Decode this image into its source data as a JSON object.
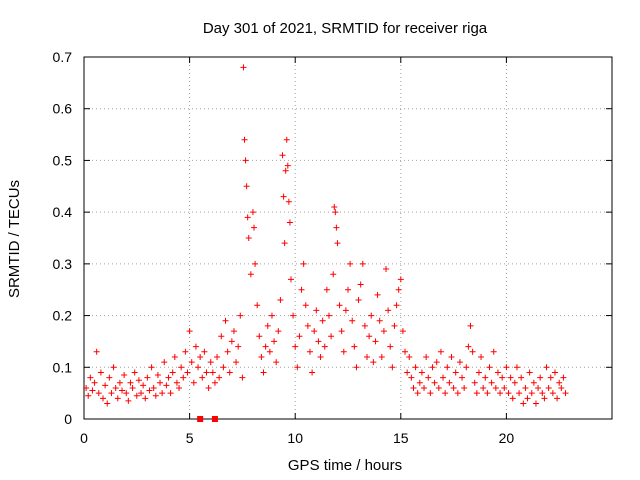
{
  "chart_data": {
    "type": "scatter",
    "title": "Day 301 of 2021, SRMTID for receiver riga",
    "xlabel": "GPS time / hours",
    "ylabel": "SRMTID / TECUs",
    "xlim": [
      0,
      25
    ],
    "ylim": [
      0,
      0.7
    ],
    "x_ticks": [
      0,
      5,
      10,
      15,
      20
    ],
    "x_tick_labels": [
      "0",
      "5",
      "10",
      "15",
      "20"
    ],
    "y_ticks": [
      0,
      0.1,
      0.2,
      0.3,
      0.4,
      0.5,
      0.6,
      0.7
    ],
    "y_tick_labels": [
      "0",
      "0.1",
      "0.2",
      "0.3",
      "0.4",
      "0.5",
      "0.6",
      "0.7"
    ],
    "grid": true,
    "legend": "none",
    "marker": "+",
    "point_color": "#ff0000",
    "series": [
      {
        "name": "SRMTID",
        "points": [
          [
            0.1,
            0.06
          ],
          [
            0.2,
            0.045
          ],
          [
            0.3,
            0.08
          ],
          [
            0.4,
            0.055
          ],
          [
            0.5,
            0.07
          ],
          [
            0.6,
            0.13
          ],
          [
            0.7,
            0.05
          ],
          [
            0.8,
            0.09
          ],
          [
            0.9,
            0.04
          ],
          [
            1.0,
            0.065
          ],
          [
            1.1,
            0.03
          ],
          [
            1.2,
            0.08
          ],
          [
            1.3,
            0.05
          ],
          [
            1.4,
            0.1
          ],
          [
            1.5,
            0.06
          ],
          [
            1.6,
            0.04
          ],
          [
            1.7,
            0.07
          ],
          [
            1.8,
            0.055
          ],
          [
            1.9,
            0.085
          ],
          [
            2.0,
            0.05
          ],
          [
            2.1,
            0.035
          ],
          [
            2.2,
            0.07
          ],
          [
            2.3,
            0.06
          ],
          [
            2.4,
            0.09
          ],
          [
            2.5,
            0.045
          ],
          [
            2.6,
            0.075
          ],
          [
            2.7,
            0.05
          ],
          [
            2.8,
            0.065
          ],
          [
            2.9,
            0.04
          ],
          [
            3.0,
            0.08
          ],
          [
            3.1,
            0.055
          ],
          [
            3.2,
            0.1
          ],
          [
            3.3,
            0.06
          ],
          [
            3.4,
            0.045
          ],
          [
            3.5,
            0.085
          ],
          [
            3.6,
            0.07
          ],
          [
            3.7,
            0.05
          ],
          [
            3.8,
            0.11
          ],
          [
            3.9,
            0.065
          ],
          [
            4.0,
            0.08
          ],
          [
            4.1,
            0.05
          ],
          [
            4.2,
            0.09
          ],
          [
            4.3,
            0.12
          ],
          [
            4.4,
            0.07
          ],
          [
            4.5,
            0.06
          ],
          [
            4.6,
            0.1
          ],
          [
            4.7,
            0.08
          ],
          [
            4.8,
            0.13
          ],
          [
            4.9,
            0.09
          ],
          [
            5.0,
            0.17
          ],
          [
            5.1,
            0.11
          ],
          [
            5.2,
            0.07
          ],
          [
            5.3,
            0.14
          ],
          [
            5.4,
            0.1
          ],
          [
            5.5,
            0.12
          ],
          [
            5.6,
            0.08
          ],
          [
            5.7,
            0.13
          ],
          [
            5.8,
            0.09
          ],
          [
            5.9,
            0.06
          ],
          [
            6.0,
            0.11
          ],
          [
            6.1,
            0.09
          ],
          [
            6.2,
            0.07
          ],
          [
            6.3,
            0.12
          ],
          [
            6.4,
            0.08
          ],
          [
            6.5,
            0.16
          ],
          [
            6.6,
            0.1
          ],
          [
            6.7,
            0.19
          ],
          [
            6.8,
            0.13
          ],
          [
            6.9,
            0.09
          ],
          [
            7.0,
            0.15
          ],
          [
            7.1,
            0.17
          ],
          [
            7.2,
            0.11
          ],
          [
            7.3,
            0.14
          ],
          [
            7.4,
            0.2
          ],
          [
            7.5,
            0.08
          ],
          [
            7.55,
            0.68
          ],
          [
            7.6,
            0.54
          ],
          [
            7.65,
            0.5
          ],
          [
            7.7,
            0.45
          ],
          [
            7.75,
            0.39
          ],
          [
            7.8,
            0.35
          ],
          [
            7.9,
            0.28
          ],
          [
            8.0,
            0.4
          ],
          [
            8.05,
            0.37
          ],
          [
            8.1,
            0.3
          ],
          [
            8.2,
            0.22
          ],
          [
            8.3,
            0.16
          ],
          [
            8.4,
            0.12
          ],
          [
            8.5,
            0.09
          ],
          [
            8.6,
            0.14
          ],
          [
            8.7,
            0.18
          ],
          [
            8.8,
            0.13
          ],
          [
            8.9,
            0.2
          ],
          [
            9.0,
            0.15
          ],
          [
            9.1,
            0.11
          ],
          [
            9.2,
            0.17
          ],
          [
            9.3,
            0.23
          ],
          [
            9.4,
            0.51
          ],
          [
            9.45,
            0.43
          ],
          [
            9.5,
            0.34
          ],
          [
            9.55,
            0.48
          ],
          [
            9.6,
            0.54
          ],
          [
            9.65,
            0.49
          ],
          [
            9.7,
            0.42
          ],
          [
            9.75,
            0.38
          ],
          [
            9.8,
            0.27
          ],
          [
            9.9,
            0.2
          ],
          [
            10.0,
            0.14
          ],
          [
            10.1,
            0.1
          ],
          [
            10.2,
            0.16
          ],
          [
            10.3,
            0.25
          ],
          [
            10.4,
            0.3
          ],
          [
            10.5,
            0.22
          ],
          [
            10.6,
            0.18
          ],
          [
            10.7,
            0.13
          ],
          [
            10.8,
            0.09
          ],
          [
            10.9,
            0.17
          ],
          [
            11.0,
            0.21
          ],
          [
            11.1,
            0.15
          ],
          [
            11.2,
            0.12
          ],
          [
            11.3,
            0.19
          ],
          [
            11.4,
            0.14
          ],
          [
            11.5,
            0.25
          ],
          [
            11.6,
            0.2
          ],
          [
            11.7,
            0.16
          ],
          [
            11.8,
            0.28
          ],
          [
            11.85,
            0.41
          ],
          [
            11.9,
            0.4
          ],
          [
            11.95,
            0.37
          ],
          [
            12.0,
            0.34
          ],
          [
            12.1,
            0.22
          ],
          [
            12.2,
            0.17
          ],
          [
            12.3,
            0.13
          ],
          [
            12.4,
            0.21
          ],
          [
            12.5,
            0.25
          ],
          [
            12.6,
            0.3
          ],
          [
            12.7,
            0.19
          ],
          [
            12.8,
            0.14
          ],
          [
            12.9,
            0.1
          ],
          [
            13.0,
            0.23
          ],
          [
            13.1,
            0.26
          ],
          [
            13.2,
            0.3
          ],
          [
            13.3,
            0.18
          ],
          [
            13.4,
            0.12
          ],
          [
            13.5,
            0.16
          ],
          [
            13.6,
            0.2
          ],
          [
            13.7,
            0.11
          ],
          [
            13.8,
            0.15
          ],
          [
            13.9,
            0.24
          ],
          [
            14.0,
            0.19
          ],
          [
            14.1,
            0.12
          ],
          [
            14.2,
            0.17
          ],
          [
            14.3,
            0.29
          ],
          [
            14.4,
            0.21
          ],
          [
            14.5,
            0.14
          ],
          [
            14.6,
            0.1
          ],
          [
            14.7,
            0.18
          ],
          [
            14.8,
            0.22
          ],
          [
            14.9,
            0.25
          ],
          [
            15.0,
            0.27
          ],
          [
            15.1,
            0.17
          ],
          [
            15.2,
            0.13
          ],
          [
            15.3,
            0.09
          ],
          [
            15.4,
            0.12
          ],
          [
            15.5,
            0.08
          ],
          [
            15.6,
            0.06
          ],
          [
            15.7,
            0.1
          ],
          [
            15.8,
            0.05
          ],
          [
            15.9,
            0.07
          ],
          [
            16.0,
            0.09
          ],
          [
            16.1,
            0.06
          ],
          [
            16.2,
            0.12
          ],
          [
            16.3,
            0.08
          ],
          [
            16.4,
            0.05
          ],
          [
            16.5,
            0.1
          ],
          [
            16.6,
            0.07
          ],
          [
            16.7,
            0.11
          ],
          [
            16.8,
            0.06
          ],
          [
            16.9,
            0.13
          ],
          [
            17.0,
            0.08
          ],
          [
            17.1,
            0.05
          ],
          [
            17.2,
            0.1
          ],
          [
            17.3,
            0.07
          ],
          [
            17.4,
            0.12
          ],
          [
            17.5,
            0.06
          ],
          [
            17.6,
            0.09
          ],
          [
            17.7,
            0.05
          ],
          [
            17.8,
            0.11
          ],
          [
            17.9,
            0.08
          ],
          [
            18.0,
            0.06
          ],
          [
            18.1,
            0.1
          ],
          [
            18.2,
            0.14
          ],
          [
            18.3,
            0.18
          ],
          [
            18.4,
            0.13
          ],
          [
            18.5,
            0.07
          ],
          [
            18.6,
            0.05
          ],
          [
            18.7,
            0.09
          ],
          [
            18.8,
            0.12
          ],
          [
            18.9,
            0.06
          ],
          [
            19.0,
            0.08
          ],
          [
            19.1,
            0.05
          ],
          [
            19.2,
            0.1
          ],
          [
            19.3,
            0.07
          ],
          [
            19.4,
            0.13
          ],
          [
            19.5,
            0.06
          ],
          [
            19.6,
            0.09
          ],
          [
            19.7,
            0.05
          ],
          [
            19.8,
            0.08
          ],
          [
            19.9,
            0.06
          ],
          [
            20.0,
            0.1
          ],
          [
            20.1,
            0.05
          ],
          [
            20.2,
            0.08
          ],
          [
            20.3,
            0.04
          ],
          [
            20.4,
            0.07
          ],
          [
            20.5,
            0.1
          ],
          [
            20.6,
            0.05
          ],
          [
            20.7,
            0.08
          ],
          [
            20.8,
            0.03
          ],
          [
            20.9,
            0.06
          ],
          [
            21.0,
            0.04
          ],
          [
            21.1,
            0.09
          ],
          [
            21.2,
            0.05
          ],
          [
            21.3,
            0.07
          ],
          [
            21.4,
            0.03
          ],
          [
            21.5,
            0.06
          ],
          [
            21.6,
            0.08
          ],
          [
            21.7,
            0.05
          ],
          [
            21.8,
            0.04
          ],
          [
            21.9,
            0.1
          ],
          [
            22.0,
            0.06
          ],
          [
            22.1,
            0.08
          ],
          [
            22.2,
            0.05
          ],
          [
            22.3,
            0.09
          ],
          [
            22.4,
            0.04
          ],
          [
            22.5,
            0.07
          ],
          [
            22.6,
            0.06
          ],
          [
            22.7,
            0.08
          ],
          [
            22.8,
            0.05
          ]
        ]
      }
    ],
    "outliers_zero": [
      [
        5.5,
        0.0
      ],
      [
        6.2,
        0.0
      ]
    ]
  }
}
